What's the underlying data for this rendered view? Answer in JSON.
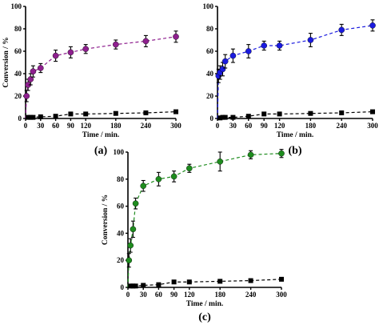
{
  "chart_data": [
    {
      "type": "scatter",
      "panel_label": "(a)",
      "xlabel": "Time / min.",
      "ylabel": "Conversion / %",
      "xlim": [
        0,
        300
      ],
      "ylim": [
        0,
        100
      ],
      "x_ticks": [
        "0",
        "30",
        "60",
        "90",
        "120",
        "180",
        "240",
        "300"
      ],
      "y_ticks": [
        "0",
        "20",
        "40",
        "60",
        "80",
        "100"
      ],
      "grid": false,
      "series": [
        {
          "marker": "circle",
          "color": "#8e1f8e",
          "line": "dashed",
          "x": [
            0,
            2,
            5,
            10,
            15,
            30,
            60,
            90,
            120,
            180,
            240,
            300
          ],
          "y": [
            0,
            20,
            30,
            35,
            42,
            45,
            56,
            59,
            62,
            66,
            69,
            73
          ],
          "error": [
            0,
            5,
            5,
            5,
            5,
            4,
            5,
            5,
            4,
            4,
            5,
            5
          ]
        },
        {
          "marker": "square",
          "color": "#000000",
          "line": "dashed",
          "x": [
            0,
            5,
            10,
            15,
            30,
            60,
            90,
            120,
            180,
            240,
            300
          ],
          "y": [
            0,
            1,
            1,
            1,
            1.5,
            2,
            4,
            4,
            4.5,
            5,
            6
          ],
          "error": []
        }
      ]
    },
    {
      "type": "scatter",
      "panel_label": "(b)",
      "xlabel": "Time / min.",
      "ylabel": "",
      "xlim": [
        0,
        300
      ],
      "ylim": [
        0,
        100
      ],
      "x_ticks": [
        "0",
        "30",
        "60",
        "90",
        "120",
        "180",
        "240",
        "300"
      ],
      "y_ticks": [
        "0",
        "20",
        "40",
        "60",
        "80",
        "100"
      ],
      "grid": false,
      "series": [
        {
          "marker": "circle",
          "color": "#1a1adf",
          "line": "dashed",
          "x": [
            0,
            2,
            5,
            10,
            15,
            30,
            60,
            90,
            120,
            180,
            240,
            300
          ],
          "y": [
            0,
            38,
            41,
            44,
            51,
            56,
            60,
            65,
            65,
            70,
            79,
            83
          ],
          "error": [
            0,
            6,
            6,
            6,
            6,
            6,
            6,
            4,
            4,
            6,
            5,
            5
          ]
        },
        {
          "marker": "square",
          "color": "#000000",
          "line": "dashed",
          "x": [
            0,
            5,
            10,
            15,
            30,
            60,
            90,
            120,
            180,
            240,
            300
          ],
          "y": [
            0,
            0.5,
            1,
            1,
            1,
            2,
            4,
            4,
            4.5,
            5,
            6
          ],
          "error": []
        }
      ]
    },
    {
      "type": "scatter",
      "panel_label": "(c)",
      "xlabel": "Time / min.",
      "ylabel": "Conversion / %",
      "xlim": [
        0,
        300
      ],
      "ylim": [
        0,
        100
      ],
      "x_ticks": [
        "0",
        "30",
        "60",
        "90",
        "120",
        "180",
        "240",
        "300"
      ],
      "y_ticks": [
        "0",
        "20",
        "40",
        "60",
        "80",
        "100"
      ],
      "grid": false,
      "series": [
        {
          "marker": "circle",
          "color": "#1e8c1e",
          "line": "dashed",
          "x": [
            0,
            2,
            5,
            10,
            15,
            30,
            60,
            90,
            120,
            180,
            240,
            300
          ],
          "y": [
            0,
            20,
            31,
            43,
            62,
            75,
            80,
            82,
            88,
            93,
            98,
            99
          ],
          "error": [
            0,
            5,
            5,
            6,
            4,
            4,
            5,
            4,
            3,
            7,
            3,
            3
          ]
        },
        {
          "marker": "square",
          "color": "#000000",
          "line": "dashed",
          "x": [
            0,
            5,
            10,
            15,
            30,
            60,
            90,
            120,
            180,
            240,
            300
          ],
          "y": [
            0,
            1,
            1,
            1,
            1.5,
            2,
            4,
            4,
            4.5,
            5,
            6
          ],
          "error": []
        }
      ]
    }
  ]
}
